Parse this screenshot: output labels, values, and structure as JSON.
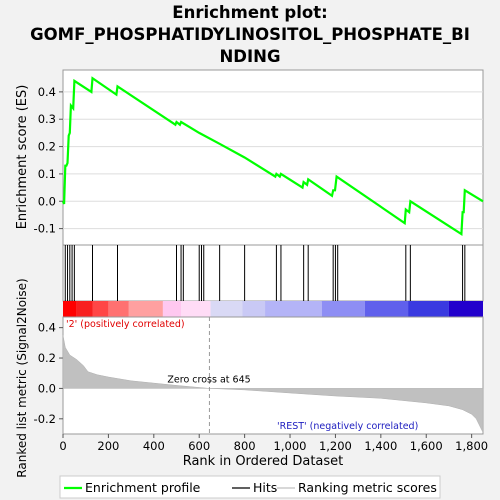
{
  "chart_data": {
    "type": "line",
    "title_line1": "Enrichment plot:",
    "title_line2": "GOMF_PHOSPHATIDYLINOSITOL_PHOSPHATE_BI",
    "title_line3": "NDING",
    "es_ylabel": "Enrichment score (ES)",
    "metric_ylabel": "Ranked list metric (Signal2Noise)",
    "xlabel": "Rank in Ordered Dataset",
    "xlim": [
      0,
      1850
    ],
    "es_ylim": [
      -0.16,
      0.48
    ],
    "metric_ylim": [
      -0.3,
      0.47
    ],
    "x_ticks": [
      0,
      200,
      400,
      600,
      800,
      1000,
      1200,
      1400,
      1600,
      1800
    ],
    "x_tick_labels": [
      "0",
      "200",
      "400",
      "600",
      "800",
      "1,000",
      "1,200",
      "1,400",
      "1,600",
      "1,800"
    ],
    "es_ticks": [
      -0.1,
      0.0,
      0.1,
      0.2,
      0.3,
      0.4
    ],
    "es_tick_labels": [
      "-0.1",
      "0.0",
      "0.1",
      "0.2",
      "0.3",
      "0.4"
    ],
    "metric_ticks": [
      -0.2,
      0.0,
      0.2,
      0.4
    ],
    "metric_tick_labels": [
      "-0.2",
      "0.0",
      "0.2",
      "0.4"
    ],
    "zero_cross_rank": 645,
    "zero_cross_label": "Zero cross at 645",
    "pos_label": "'2' (positively correlated)",
    "neg_label": "'REST' (negatively correlated)",
    "hits": [
      10,
      20,
      30,
      40,
      50,
      130,
      240,
      500,
      520,
      530,
      600,
      610,
      620,
      690,
      800,
      940,
      960,
      1060,
      1080,
      1190,
      1200,
      1210,
      1510,
      1530,
      1760,
      1770
    ],
    "es_profile": [
      [
        0,
        0.0
      ],
      [
        5,
        -0.01
      ],
      [
        10,
        0.13
      ],
      [
        15,
        0.13
      ],
      [
        20,
        0.14
      ],
      [
        25,
        0.24
      ],
      [
        30,
        0.25
      ],
      [
        35,
        0.35
      ],
      [
        45,
        0.34
      ],
      [
        50,
        0.44
      ],
      [
        125,
        0.4
      ],
      [
        130,
        0.45
      ],
      [
        235,
        0.39
      ],
      [
        240,
        0.42
      ],
      [
        495,
        0.28
      ],
      [
        500,
        0.29
      ],
      [
        515,
        0.28
      ],
      [
        520,
        0.29
      ],
      [
        600,
        0.25
      ],
      [
        690,
        0.21
      ],
      [
        800,
        0.16
      ],
      [
        935,
        0.09
      ],
      [
        940,
        0.1
      ],
      [
        955,
        0.09
      ],
      [
        960,
        0.1
      ],
      [
        1055,
        0.05
      ],
      [
        1060,
        0.07
      ],
      [
        1075,
        0.06
      ],
      [
        1080,
        0.08
      ],
      [
        1185,
        0.02
      ],
      [
        1190,
        0.04
      ],
      [
        1198,
        0.04
      ],
      [
        1205,
        0.09
      ],
      [
        1505,
        -0.08
      ],
      [
        1510,
        -0.03
      ],
      [
        1525,
        -0.04
      ],
      [
        1530,
        0.0
      ],
      [
        1755,
        -0.12
      ],
      [
        1760,
        -0.04
      ],
      [
        1765,
        -0.04
      ],
      [
        1770,
        0.04
      ],
      [
        1850,
        0.0
      ]
    ],
    "metric_profile": [
      [
        0,
        0.35
      ],
      [
        10,
        0.27
      ],
      [
        30,
        0.22
      ],
      [
        60,
        0.19
      ],
      [
        90,
        0.15
      ],
      [
        110,
        0.11
      ],
      [
        150,
        0.09
      ],
      [
        200,
        0.075
      ],
      [
        300,
        0.05
      ],
      [
        400,
        0.035
      ],
      [
        500,
        0.02
      ],
      [
        645,
        0.0
      ],
      [
        800,
        -0.01
      ],
      [
        1000,
        -0.03
      ],
      [
        1200,
        -0.05
      ],
      [
        1400,
        -0.065
      ],
      [
        1600,
        -0.095
      ],
      [
        1700,
        -0.115
      ],
      [
        1760,
        -0.14
      ],
      [
        1800,
        -0.17
      ],
      [
        1820,
        -0.2
      ],
      [
        1840,
        -0.26
      ],
      [
        1850,
        -0.29
      ]
    ],
    "band_colors": [
      "#ff0000",
      "#f81f1f",
      "#ff4646",
      "#ff7171",
      "#ffa0a0",
      "#ffc8f0",
      "#ffdcf6",
      "#d9d9f5",
      "#c9c9f5",
      "#b4b4f7",
      "#8e8ef4",
      "#6060ec",
      "#3a3ae0",
      "#2200cc"
    ],
    "band_edges": [
      0,
      60,
      130,
      200,
      290,
      440,
      520,
      650,
      790,
      890,
      1140,
      1330,
      1520,
      1700,
      1850
    ],
    "es_line_color": "#00ff00",
    "legend": [
      "Enrichment profile",
      "Hits",
      "Ranking metric scores"
    ]
  }
}
